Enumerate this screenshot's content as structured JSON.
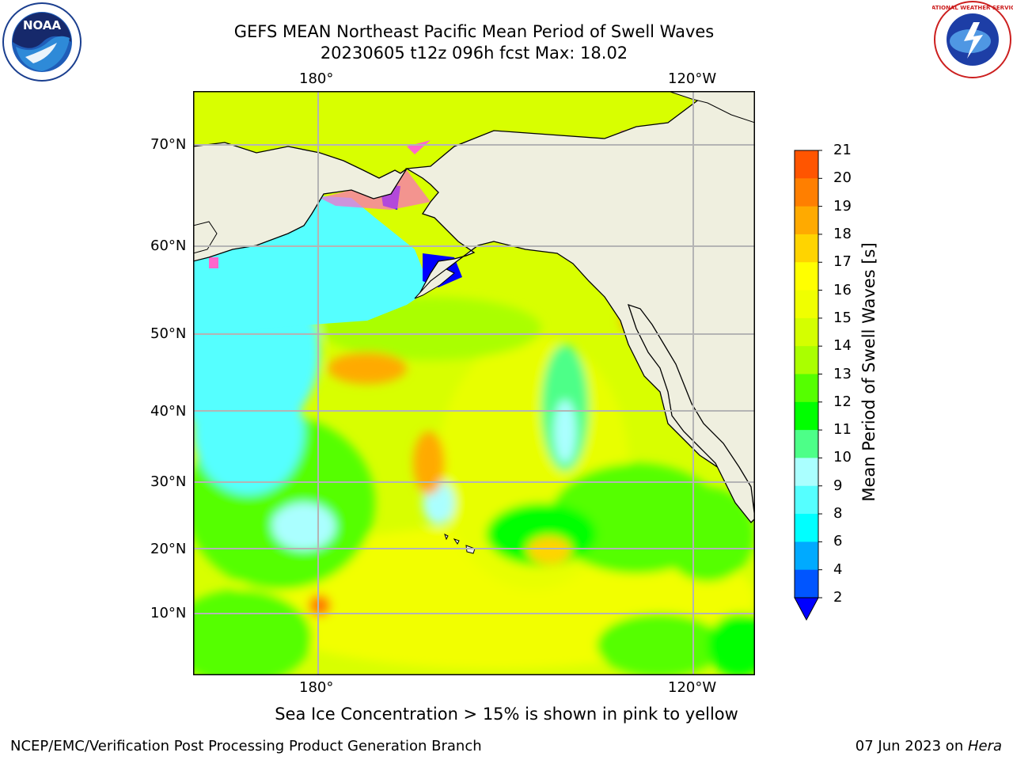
{
  "title_line1": "GEFS MEAN Northeast Pacific Mean Period of Swell Waves",
  "title_line2": "20230605 t12z 096h fcst   Max: 18.02",
  "lon_labels": [
    "180°",
    "120°W"
  ],
  "lat_labels": [
    "70°N",
    "60°N",
    "50°N",
    "40°N",
    "30°N",
    "20°N",
    "10°N"
  ],
  "colorbar": {
    "title": "Mean Period of Swell Waves [s]",
    "ticks": [
      "21",
      "20",
      "19",
      "18",
      "17",
      "16",
      "15",
      "14",
      "13",
      "12",
      "11",
      "10",
      "9",
      "8",
      "6",
      "4",
      "2"
    ],
    "colors": [
      "#ff0000",
      "#ff2a00",
      "#ff5500",
      "#ff7f00",
      "#ffaa00",
      "#ffd400",
      "#ffff00",
      "#f0ff00",
      "#d4ff00",
      "#aaff00",
      "#55ff00",
      "#00ff00",
      "#4dff88",
      "#aaffff",
      "#55ffff",
      "#00ffff",
      "#00aaff",
      "#0055ff",
      "#0000ff"
    ]
  },
  "caption": "Sea Ice Concentration > 15% is shown in pink to yellow",
  "footer_left": "NCEP/EMC/Verification Post Processing Product Generation Branch",
  "footer_right_date": "07 Jun 2023 on ",
  "footer_right_host": "Hera",
  "logos": {
    "left": "NOAA",
    "right": "NATIONAL WEATHER SERVICE"
  },
  "colors": {
    "land": "#efefdf",
    "grid": "#b4b4b4"
  }
}
